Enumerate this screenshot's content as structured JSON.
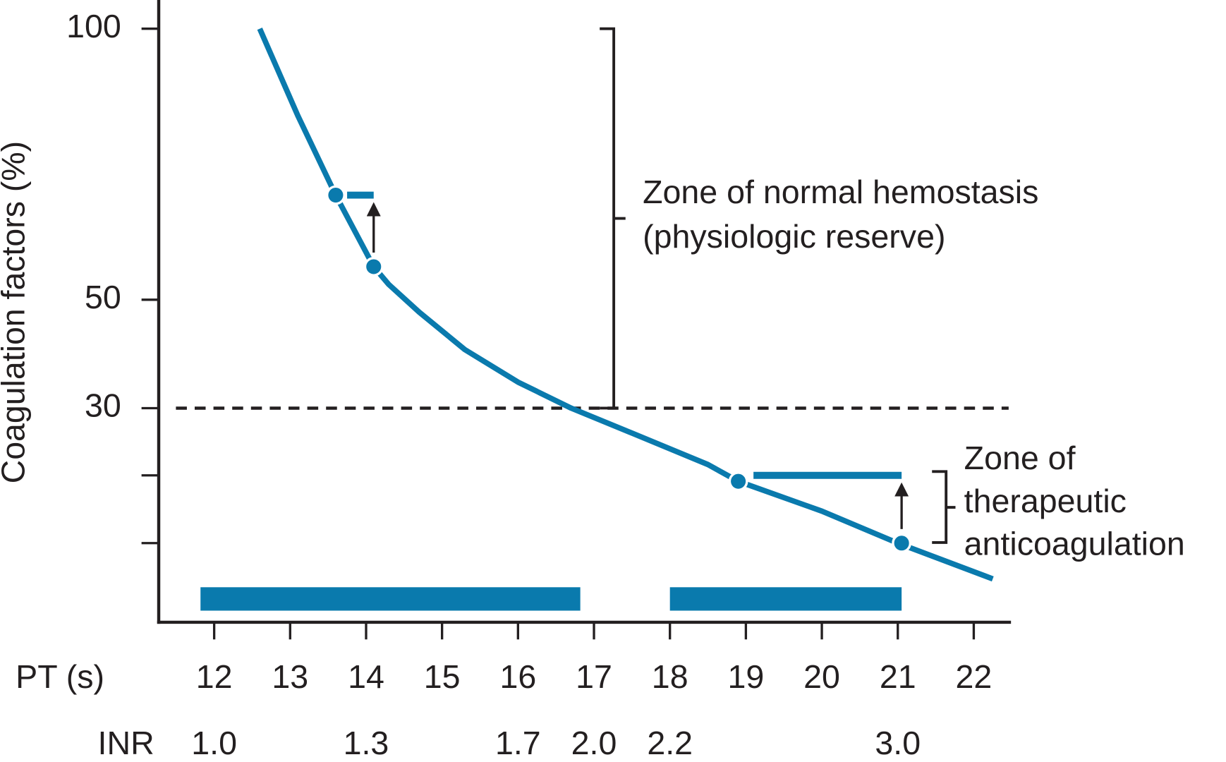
{
  "chart_data": {
    "type": "line",
    "y_label": "Coagulation factors (%)",
    "x_label": "PT (s)",
    "x2_label": "INR",
    "color": "#0a7aad",
    "xlim": [
      11.27,
      22.49
    ],
    "ylim": [
      -9.5,
      105.3
    ],
    "xticks": [
      12,
      13,
      14,
      15,
      16,
      17,
      18,
      19,
      20,
      21,
      22
    ],
    "yticks": [
      30,
      50,
      100
    ],
    "minor_yticks": [
      5.1,
      17.6
    ],
    "x2ticks": [
      {
        "value": 12,
        "label": "1.0"
      },
      {
        "value": 14,
        "label": "1.3"
      },
      {
        "value": 16,
        "label": "1.7"
      },
      {
        "value": 17,
        "label": "2.0"
      },
      {
        "value": 18,
        "label": "2.2"
      },
      {
        "value": 21,
        "label": "3.0"
      }
    ],
    "series": [
      {
        "x": [
          12.6,
          13.1,
          13.6,
          14.1,
          14.3,
          14.7,
          15.3,
          16,
          16.7,
          17.5,
          18.5,
          18.9,
          20,
          21,
          22.25
        ],
        "values": [
          100,
          84,
          69.3,
          56.1,
          52.8,
          47.7,
          40.8,
          34.8,
          30,
          25.4,
          19.6,
          16.5,
          11,
          5.1,
          -1.5
        ]
      }
    ],
    "points": {
      "x": [
        13.6,
        14.1,
        18.9,
        21.05
      ],
      "values": [
        69.3,
        56.1,
        16.5,
        5.1
      ]
    },
    "steps": [
      {
        "x_start": 13.75,
        "x_end": 14.1,
        "from": 56.1,
        "to": 69.3
      },
      {
        "x_start": 19.1,
        "x_end": 21.05,
        "from": 5.1,
        "to": 17.6
      }
    ],
    "threshold": 30,
    "ranges": [
      {
        "x": [
          11.82,
          16.82
        ],
        "y": -5.2
      },
      {
        "x": [
          18,
          21.05
        ],
        "y": -5.2
      }
    ],
    "zones": [
      {
        "from": 30,
        "to": 100,
        "mid": 65,
        "lines": [
          "Zone of normal hemostasis",
          "(physiologic reserve)"
        ]
      },
      {
        "from": 5.2,
        "to": 18.3,
        "mid": 11.7,
        "lines": [
          "Zone of",
          "therapeutic",
          "anticoagulation"
        ]
      }
    ]
  }
}
